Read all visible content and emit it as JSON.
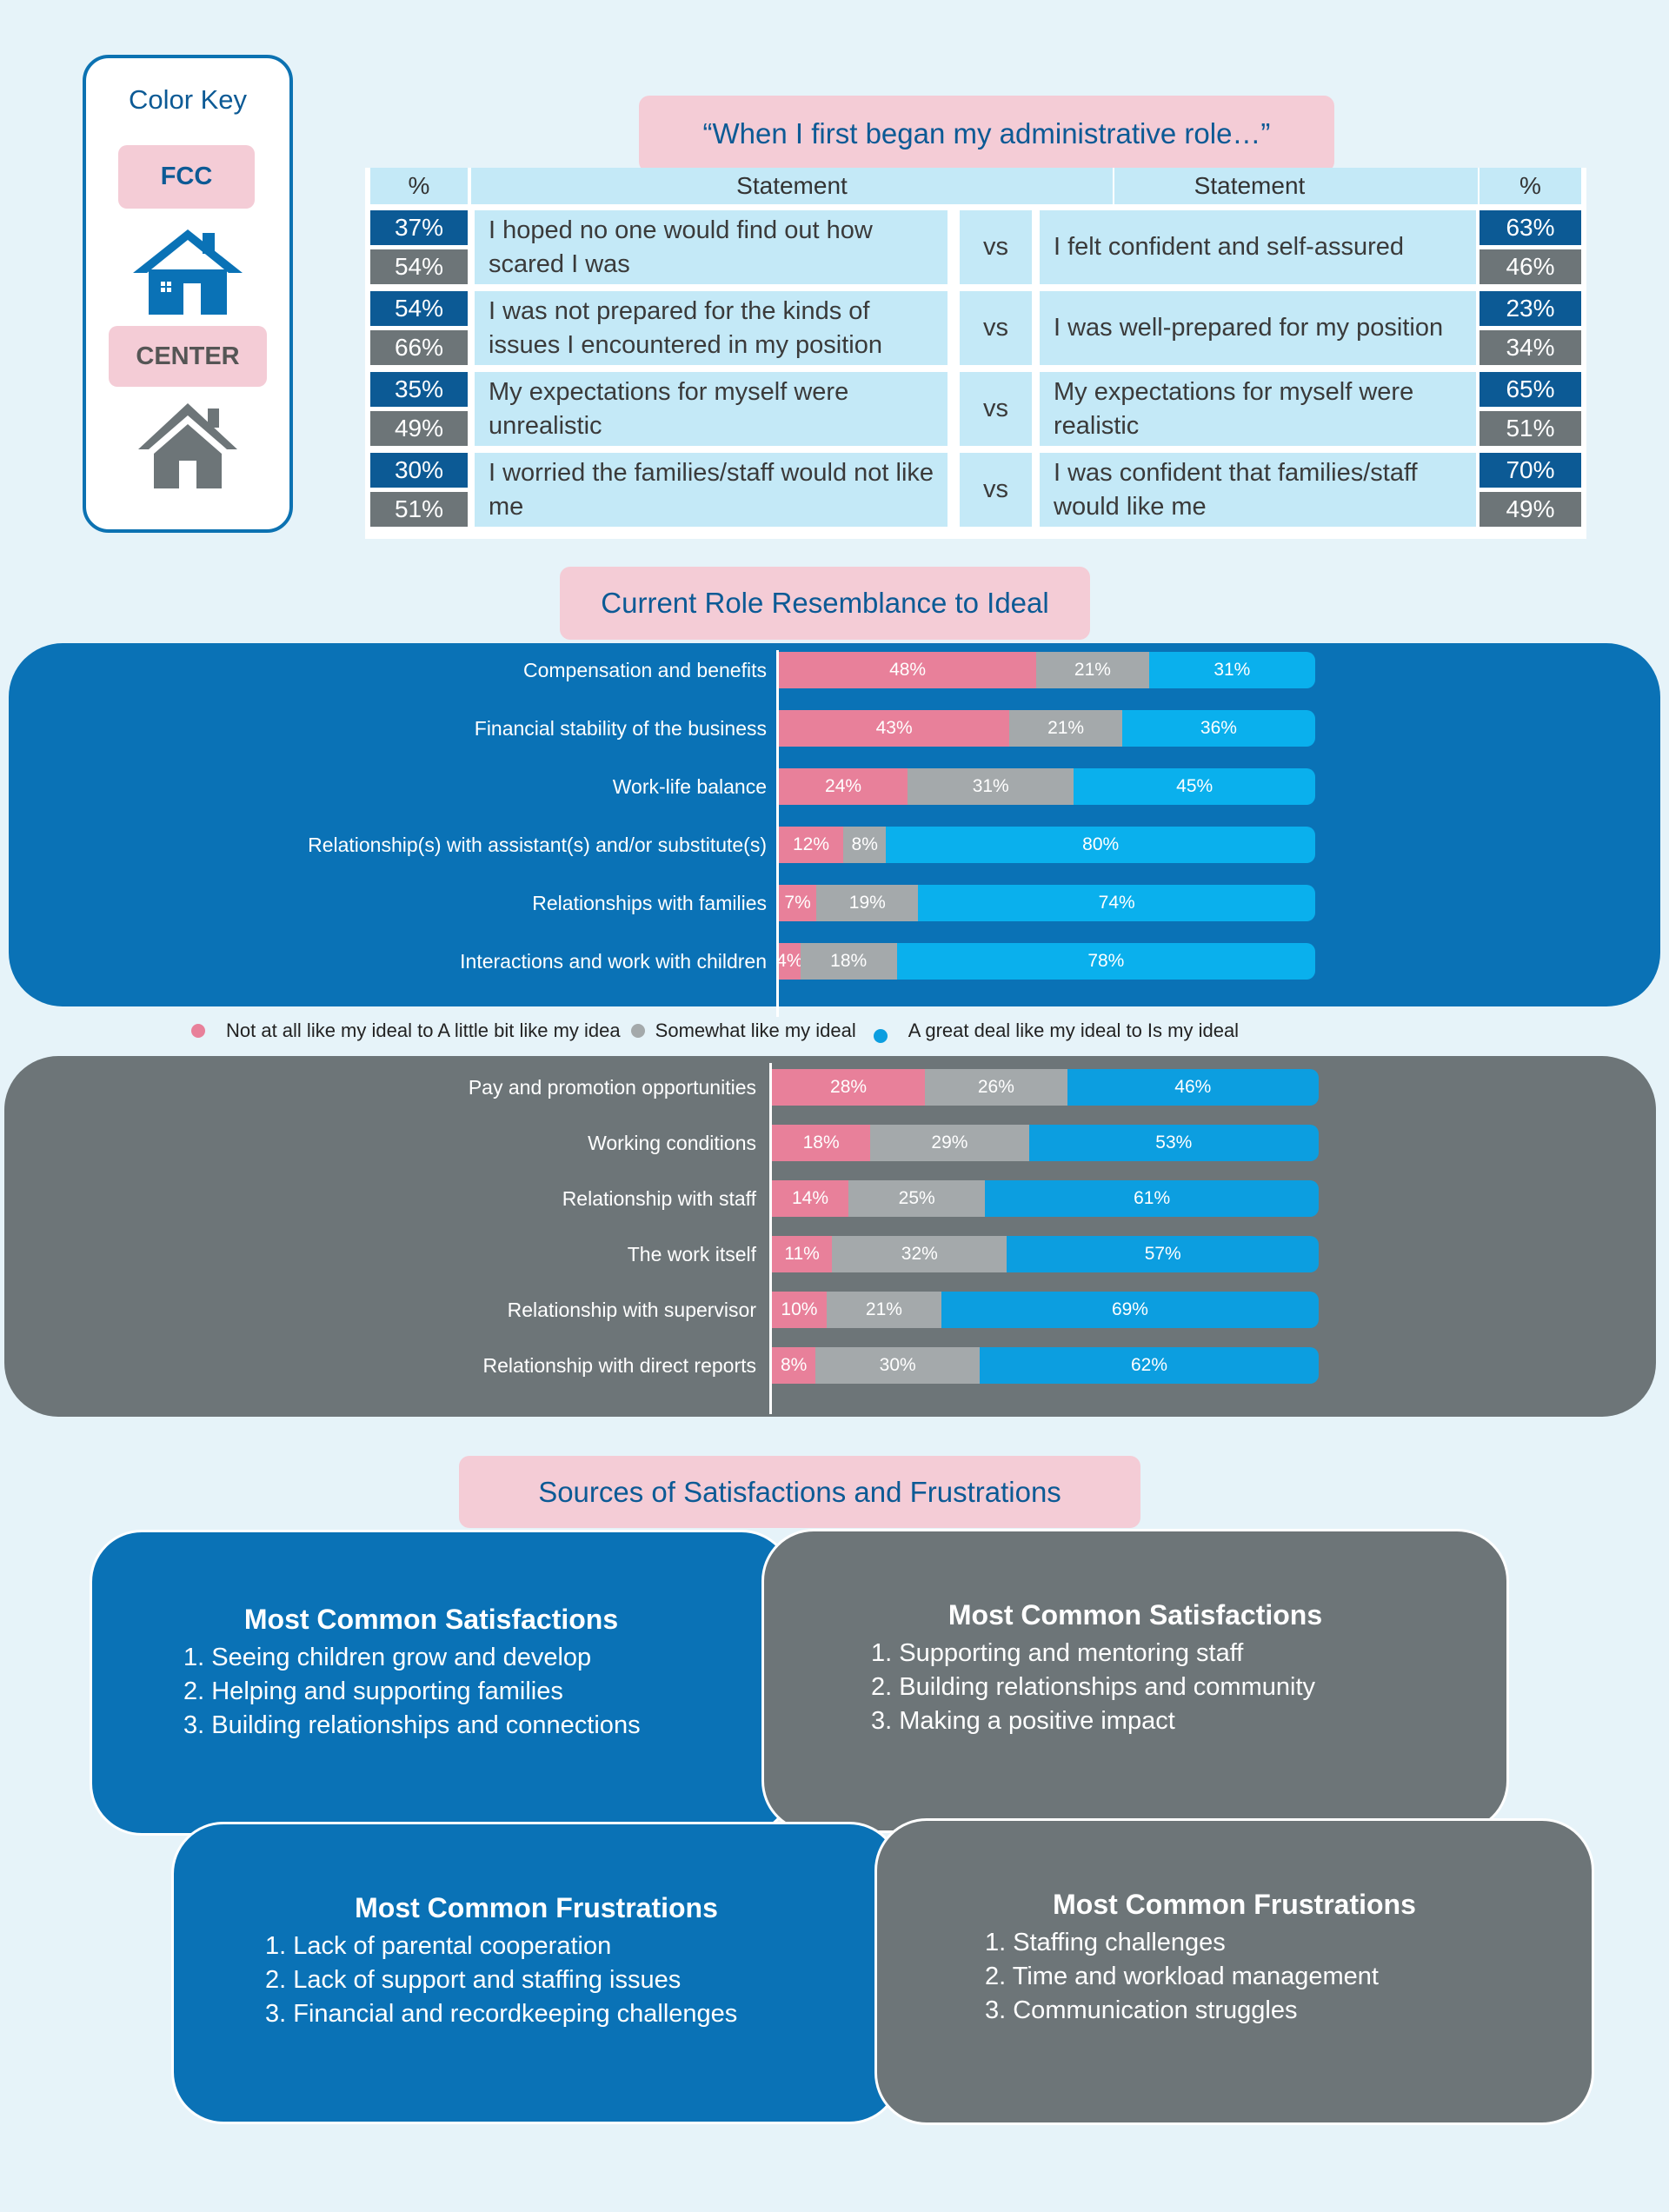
{
  "color_key": {
    "title": "Color Key",
    "fcc_label": "FCC",
    "center_label": "CENTER",
    "fcc_icon": "house-icon",
    "center_icon": "home-icon"
  },
  "colors": {
    "fcc": "#0c5a95",
    "center": "#6d7578",
    "pink": "#e8809a",
    "gray": "#a4a9ab",
    "blue": "#0c9ee0",
    "bright_blue": "#0ab0ed"
  },
  "quote_header": "“When I first began my administrative role…”",
  "table": {
    "headers": {
      "pct_left": "%",
      "stmt_left": "Statement",
      "stmt_right": "Statement",
      "pct_right": "%"
    },
    "vs_label": "vs",
    "rows": [
      {
        "left": "I hoped no one would find out how scared I was",
        "left_fcc": "37%",
        "left_center": "54%",
        "right": "I felt confident and self-assured",
        "right_fcc": "63%",
        "right_center": "46%"
      },
      {
        "left": "I was not prepared for the kinds of issues I encountered in my position",
        "left_fcc": "54%",
        "left_center": "66%",
        "right": "I was well-prepared for my position",
        "right_fcc": "23%",
        "right_center": "34%"
      },
      {
        "left": "My expectations for myself were unrealistic",
        "left_fcc": "35%",
        "left_center": "49%",
        "right": "My expectations for myself were realistic",
        "right_fcc": "65%",
        "right_center": "51%"
      },
      {
        "left": "I worried the families/staff would not like me",
        "left_fcc": "30%",
        "left_center": "51%",
        "right": "I was confident that families/staff would like me",
        "right_fcc": "70%",
        "right_center": "49%"
      }
    ]
  },
  "ideal_header": "Current Role Resemblance to Ideal",
  "chart_data": [
    {
      "type": "bar",
      "stacked": true,
      "orientation": "horizontal",
      "group": "FCC",
      "categories": [
        "Compensation and benefits",
        "Financial stability of the business",
        "Work-life balance",
        "Relationship(s) with assistant(s) and/or substitute(s)",
        "Relationships with families",
        "Interactions and work with children"
      ],
      "series": [
        {
          "name": "Not at all like my ideal to A little bit like my idea",
          "values": [
            48,
            43,
            24,
            12,
            7,
            4
          ]
        },
        {
          "name": "Somewhat like my ideal",
          "values": [
            21,
            21,
            31,
            8,
            19,
            18
          ]
        },
        {
          "name": "A great deal like my ideal to Is my ideal",
          "values": [
            31,
            36,
            45,
            80,
            74,
            78
          ]
        }
      ],
      "unit": "%"
    },
    {
      "type": "bar",
      "stacked": true,
      "orientation": "horizontal",
      "group": "CENTER",
      "categories": [
        "Pay and promotion opportunities",
        "Working conditions",
        "Relationship with staff",
        "The work itself",
        "Relationship with supervisor",
        "Relationship with direct reports"
      ],
      "series": [
        {
          "name": "Not at all like my ideal to A little bit like my idea",
          "values": [
            28,
            18,
            14,
            11,
            10,
            8
          ]
        },
        {
          "name": "Somewhat like my ideal",
          "values": [
            26,
            29,
            25,
            32,
            21,
            30
          ]
        },
        {
          "name": "A great deal like my ideal to Is my ideal",
          "values": [
            46,
            53,
            61,
            57,
            69,
            62
          ]
        }
      ],
      "unit": "%"
    }
  ],
  "legend": [
    {
      "label": "Not at all like my ideal to A little bit like my idea",
      "color": "#e8809a"
    },
    {
      "label": "Somewhat like my ideal",
      "color": "#a4a9ab"
    },
    {
      "label": "A great deal like my ideal to Is my ideal",
      "color": "#0c9ee0"
    }
  ],
  "sources_header": "Sources of Satisfactions and Frustrations",
  "cards": {
    "fcc_satisfactions": {
      "title": "Most Common Satisfactions",
      "items": [
        "1. Seeing children grow and develop",
        "2. Helping and supporting families",
        "3. Building relationships and connections"
      ]
    },
    "center_satisfactions": {
      "title": "Most Common Satisfactions",
      "items": [
        "1. Supporting and mentoring staff",
        "2. Building relationships and community",
        "3. Making a positive impact"
      ]
    },
    "fcc_frustrations": {
      "title": "Most Common Frustrations",
      "items": [
        "1. Lack of parental cooperation",
        "2. Lack of support and staffing issues",
        "3. Financial and recordkeeping challenges"
      ]
    },
    "center_frustrations": {
      "title": "Most Common Frustrations",
      "items": [
        "1. Staffing challenges",
        "2. Time and workload management",
        "3. Communication struggles"
      ]
    }
  }
}
